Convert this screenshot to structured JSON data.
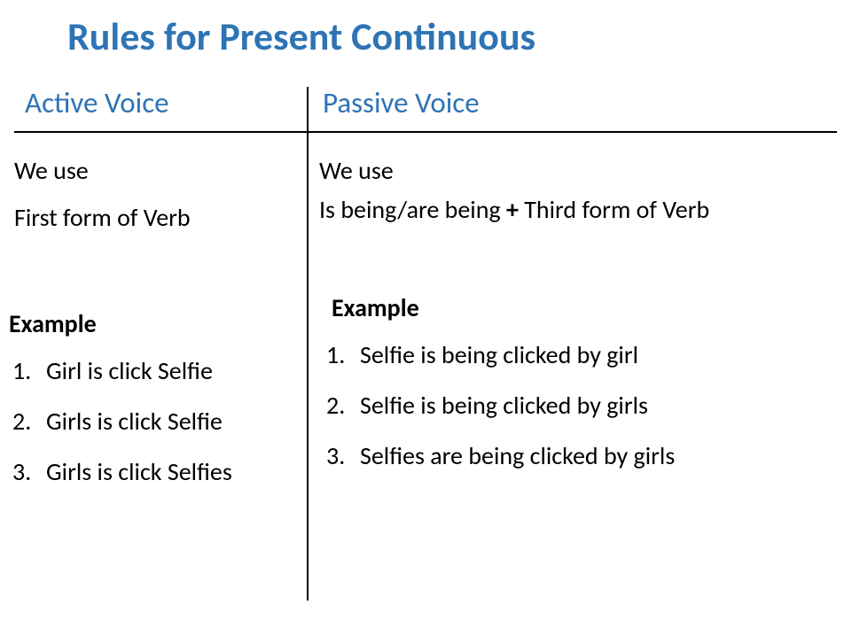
{
  "title": "Rules for Present Continuous",
  "colors": {
    "heading": "#2e74b5",
    "body": "#000000",
    "background": "#ffffff",
    "divider": "#000000"
  },
  "typography": {
    "title_fontsize": 44,
    "header_fontsize": 33,
    "body_fontsize": 28,
    "font_family": "Calibri"
  },
  "left": {
    "header": "Active Voice",
    "rule_line1": "We use",
    "rule_line2": "First form of Verb",
    "example_label": "Example",
    "examples": [
      {
        "num": "1.",
        "text": "Girl is click Selfie"
      },
      {
        "num": "2.",
        "text": "Girls is click Selfie"
      },
      {
        "num": "3.",
        "text": "Girls is click Selfies"
      }
    ]
  },
  "right": {
    "header": "Passive Voice",
    "rule_line1": "We use",
    "rule_line2_part1": "Is being/are being ",
    "rule_line2_plus": "+",
    "rule_line2_part2": " Third form of Verb",
    "example_label": "Example",
    "examples": [
      {
        "num": "1.",
        "text": "Selfie is being clicked by girl"
      },
      {
        "num": "2.",
        "text": "Selfie is being clicked by girls"
      },
      {
        "num": "3.",
        "text": "Selfies are being clicked by girls"
      }
    ]
  }
}
